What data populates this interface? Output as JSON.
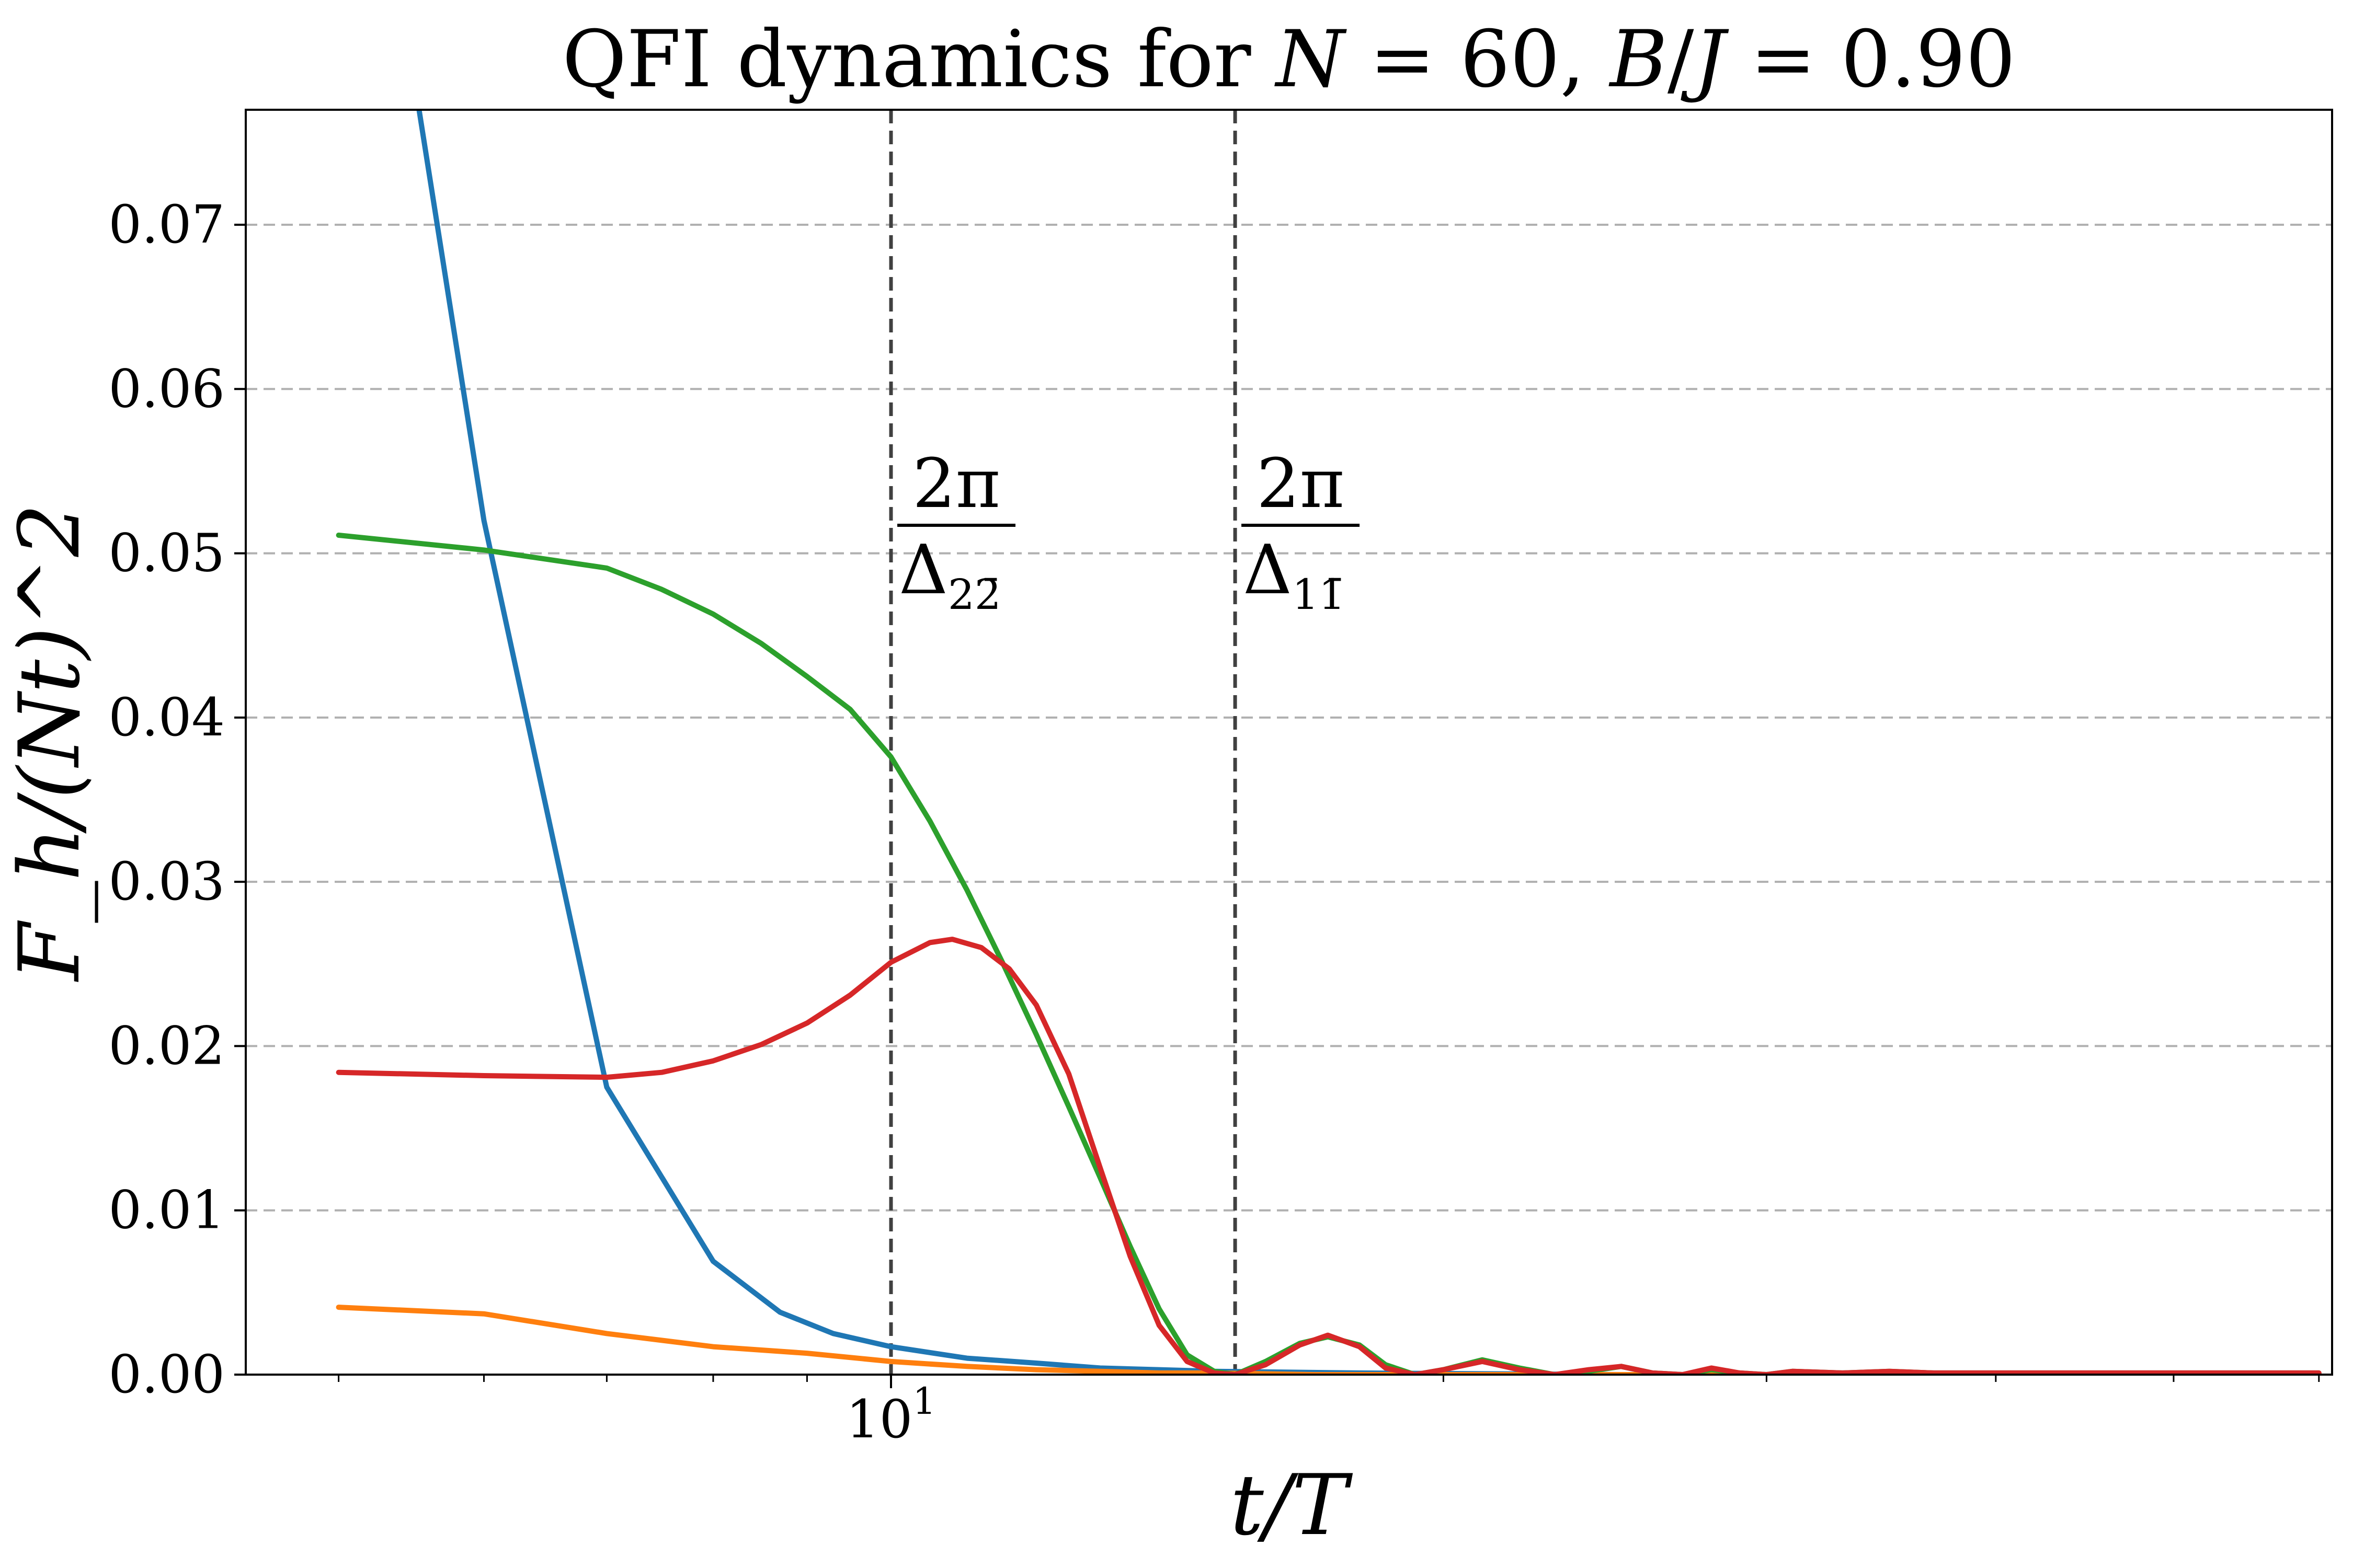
{
  "chart_data": {
    "type": "line",
    "title": "QFI dynamics for N = 60, B/J = 0.90",
    "title_parts": {
      "prefix": "QFI dynamics for ",
      "n_symbol": "N",
      "n_eq": " = 60, ",
      "b_symbol": "B",
      "slash": "/",
      "j_symbol": "J",
      "b_eq": " = 0.90"
    },
    "xlabel": "t/T",
    "ylabel": "F_h/(Nt)^2",
    "xscale": "log",
    "xlim": [
      4.45,
      61
    ],
    "ylim": [
      0,
      0.077
    ],
    "x_tick_label": "10",
    "x_tick_exponent": "1",
    "x_tick_value": 10,
    "y_ticks": [
      0.0,
      0.01,
      0.02,
      0.03,
      0.04,
      0.05,
      0.06,
      0.07
    ],
    "y_tick_labels": [
      "0.00",
      "0.01",
      "0.02",
      "0.03",
      "0.04",
      "0.05",
      "0.06",
      "0.07"
    ],
    "grid": "horizontal-dashed",
    "vlines": [
      {
        "x": 10.0,
        "numerator": "2π",
        "denominator": "Δ",
        "subscript": "22̄"
      },
      {
        "x": 15.4,
        "numerator": "2π",
        "denominator": "Δ",
        "subscript": "11̄"
      }
    ],
    "series": [
      {
        "color": "#1f77b4",
        "points": [
          [
            5.0,
            0.108
          ],
          [
            6.0,
            0.052
          ],
          [
            7.0,
            0.0175
          ],
          [
            8.0,
            0.0069
          ],
          [
            8.7,
            0.0038
          ],
          [
            9.3,
            0.0025
          ],
          [
            10.0,
            0.0017
          ],
          [
            11.0,
            0.001
          ],
          [
            12.0,
            0.0007
          ],
          [
            13.0,
            0.0004
          ],
          [
            14.0,
            0.0003
          ],
          [
            15.0,
            0.0002
          ],
          [
            18.0,
            0.0001
          ],
          [
            25.0,
            0.0
          ],
          [
            60.0,
            0.0
          ]
        ]
      },
      {
        "color": "#ff7f0e",
        "points": [
          [
            5.0,
            0.0041
          ],
          [
            6.0,
            0.0037
          ],
          [
            7.0,
            0.0025
          ],
          [
            8.0,
            0.0017
          ],
          [
            9.0,
            0.0013
          ],
          [
            10.0,
            0.0008
          ],
          [
            11.0,
            0.0005
          ],
          [
            12.0,
            0.0003
          ],
          [
            13.0,
            0.0002
          ],
          [
            14.0,
            0.0001
          ],
          [
            15.0,
            0.0001
          ],
          [
            17.0,
            0.0
          ],
          [
            60.0,
            0.0
          ]
        ]
      },
      {
        "color": "#2ca02c",
        "points": [
          [
            5.0,
            0.0511
          ],
          [
            6.0,
            0.0502
          ],
          [
            7.0,
            0.0491
          ],
          [
            7.5,
            0.0478
          ],
          [
            8.0,
            0.0463
          ],
          [
            8.5,
            0.0445
          ],
          [
            9.0,
            0.0425
          ],
          [
            9.5,
            0.0405
          ],
          [
            10.0,
            0.0376
          ],
          [
            10.5,
            0.0337
          ],
          [
            11.0,
            0.0295
          ],
          [
            11.5,
            0.0251
          ],
          [
            12.0,
            0.0207
          ],
          [
            12.5,
            0.0163
          ],
          [
            13.0,
            0.012
          ],
          [
            13.5,
            0.0078
          ],
          [
            14.0,
            0.004
          ],
          [
            14.5,
            0.0012
          ],
          [
            15.0,
            0.0002
          ],
          [
            15.4,
            0.0
          ],
          [
            16.0,
            0.0008
          ],
          [
            16.7,
            0.0019
          ],
          [
            17.3,
            0.0023
          ],
          [
            18.0,
            0.0018
          ],
          [
            18.6,
            0.0006
          ],
          [
            19.3,
            0.0
          ],
          [
            20.0,
            0.0003
          ],
          [
            21.0,
            0.0009
          ],
          [
            22.0,
            0.0004
          ],
          [
            23.0,
            0.0
          ],
          [
            24.0,
            0.0002
          ],
          [
            25.0,
            0.0005
          ],
          [
            26.0,
            0.0001
          ],
          [
            27.0,
            0.0
          ],
          [
            28.0,
            0.0003
          ],
          [
            29.0,
            0.0001
          ],
          [
            30.0,
            0.0
          ],
          [
            31.0,
            0.0002
          ],
          [
            33.0,
            0.0001
          ],
          [
            35.0,
            0.0002
          ],
          [
            37.0,
            0.0001
          ],
          [
            40.0,
            0.0001
          ],
          [
            60.0,
            0.0001
          ]
        ]
      },
      {
        "color": "#d62728",
        "points": [
          [
            5.0,
            0.0184
          ],
          [
            6.0,
            0.0182
          ],
          [
            7.0,
            0.0181
          ],
          [
            7.5,
            0.0184
          ],
          [
            8.0,
            0.0191
          ],
          [
            8.5,
            0.0201
          ],
          [
            9.0,
            0.0214
          ],
          [
            9.5,
            0.0231
          ],
          [
            10.0,
            0.0251
          ],
          [
            10.5,
            0.0263
          ],
          [
            10.8,
            0.0265
          ],
          [
            11.2,
            0.026
          ],
          [
            11.6,
            0.0247
          ],
          [
            12.0,
            0.0225
          ],
          [
            12.5,
            0.0183
          ],
          [
            13.0,
            0.0126
          ],
          [
            13.5,
            0.0072
          ],
          [
            14.0,
            0.003
          ],
          [
            14.5,
            0.0008
          ],
          [
            15.0,
            0.0001
          ],
          [
            15.4,
            0.0
          ],
          [
            16.0,
            0.0006
          ],
          [
            16.7,
            0.0018
          ],
          [
            17.3,
            0.0024
          ],
          [
            18.0,
            0.0017
          ],
          [
            18.6,
            0.0004
          ],
          [
            19.3,
            0.0
          ],
          [
            20.0,
            0.0003
          ],
          [
            21.0,
            0.0008
          ],
          [
            22.0,
            0.0003
          ],
          [
            23.0,
            0.0
          ],
          [
            24.0,
            0.0003
          ],
          [
            25.0,
            0.0005
          ],
          [
            26.0,
            0.0001
          ],
          [
            27.0,
            0.0
          ],
          [
            28.0,
            0.0004
          ],
          [
            29.0,
            0.0001
          ],
          [
            30.0,
            0.0
          ],
          [
            31.0,
            0.0002
          ],
          [
            33.0,
            0.0001
          ],
          [
            35.0,
            0.0002
          ],
          [
            37.0,
            0.0001
          ],
          [
            40.0,
            0.0001
          ],
          [
            60.0,
            0.0001
          ]
        ]
      }
    ]
  }
}
